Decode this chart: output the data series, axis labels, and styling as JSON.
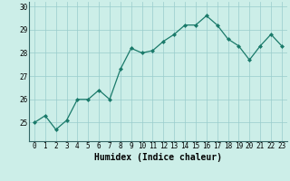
{
  "x": [
    0,
    1,
    2,
    3,
    4,
    5,
    6,
    7,
    8,
    9,
    10,
    11,
    12,
    13,
    14,
    15,
    16,
    17,
    18,
    19,
    20,
    21,
    22,
    23
  ],
  "y": [
    25.0,
    25.3,
    24.7,
    25.1,
    26.0,
    26.0,
    26.4,
    26.0,
    27.3,
    28.2,
    28.0,
    28.1,
    28.5,
    28.8,
    29.2,
    29.2,
    29.6,
    29.2,
    28.6,
    28.3,
    27.7,
    28.3,
    28.8,
    28.3
  ],
  "line_color": "#1a7a6a",
  "marker": "D",
  "marker_size": 2,
  "bg_color": "#cceee8",
  "grid_color": "#99cccc",
  "xlabel": "Humidex (Indice chaleur)",
  "xlabel_fontsize": 7,
  "ylabel_ticks": [
    25,
    26,
    27,
    28,
    29,
    30
  ],
  "xlim": [
    -0.5,
    23.5
  ],
  "ylim": [
    24.2,
    30.2
  ],
  "tick_fontsize": 5.5
}
